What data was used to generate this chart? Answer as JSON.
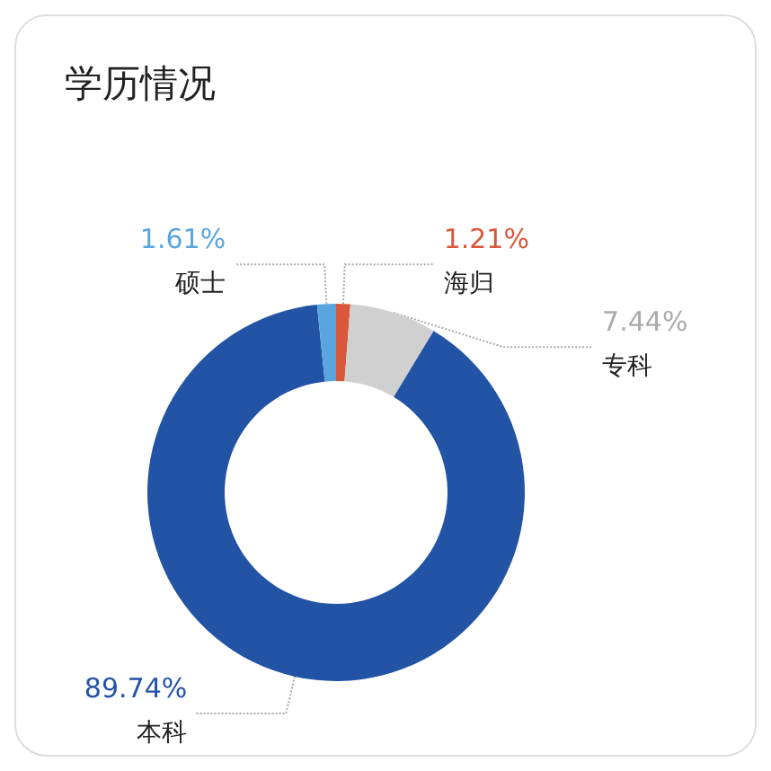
{
  "chart_data": {
    "type": "donut",
    "title": "学历情况",
    "categories": [
      "海归",
      "专科",
      "本科",
      "硕士"
    ],
    "values": [
      1.21,
      7.44,
      89.74,
      1.61
    ],
    "colors": [
      "#d9573a",
      "#d0d0d0",
      "#2253a5",
      "#5aa5dd"
    ],
    "value_labels": [
      "1.21%",
      "7.44%",
      "89.74%",
      "1.61%"
    ],
    "legend": false
  }
}
